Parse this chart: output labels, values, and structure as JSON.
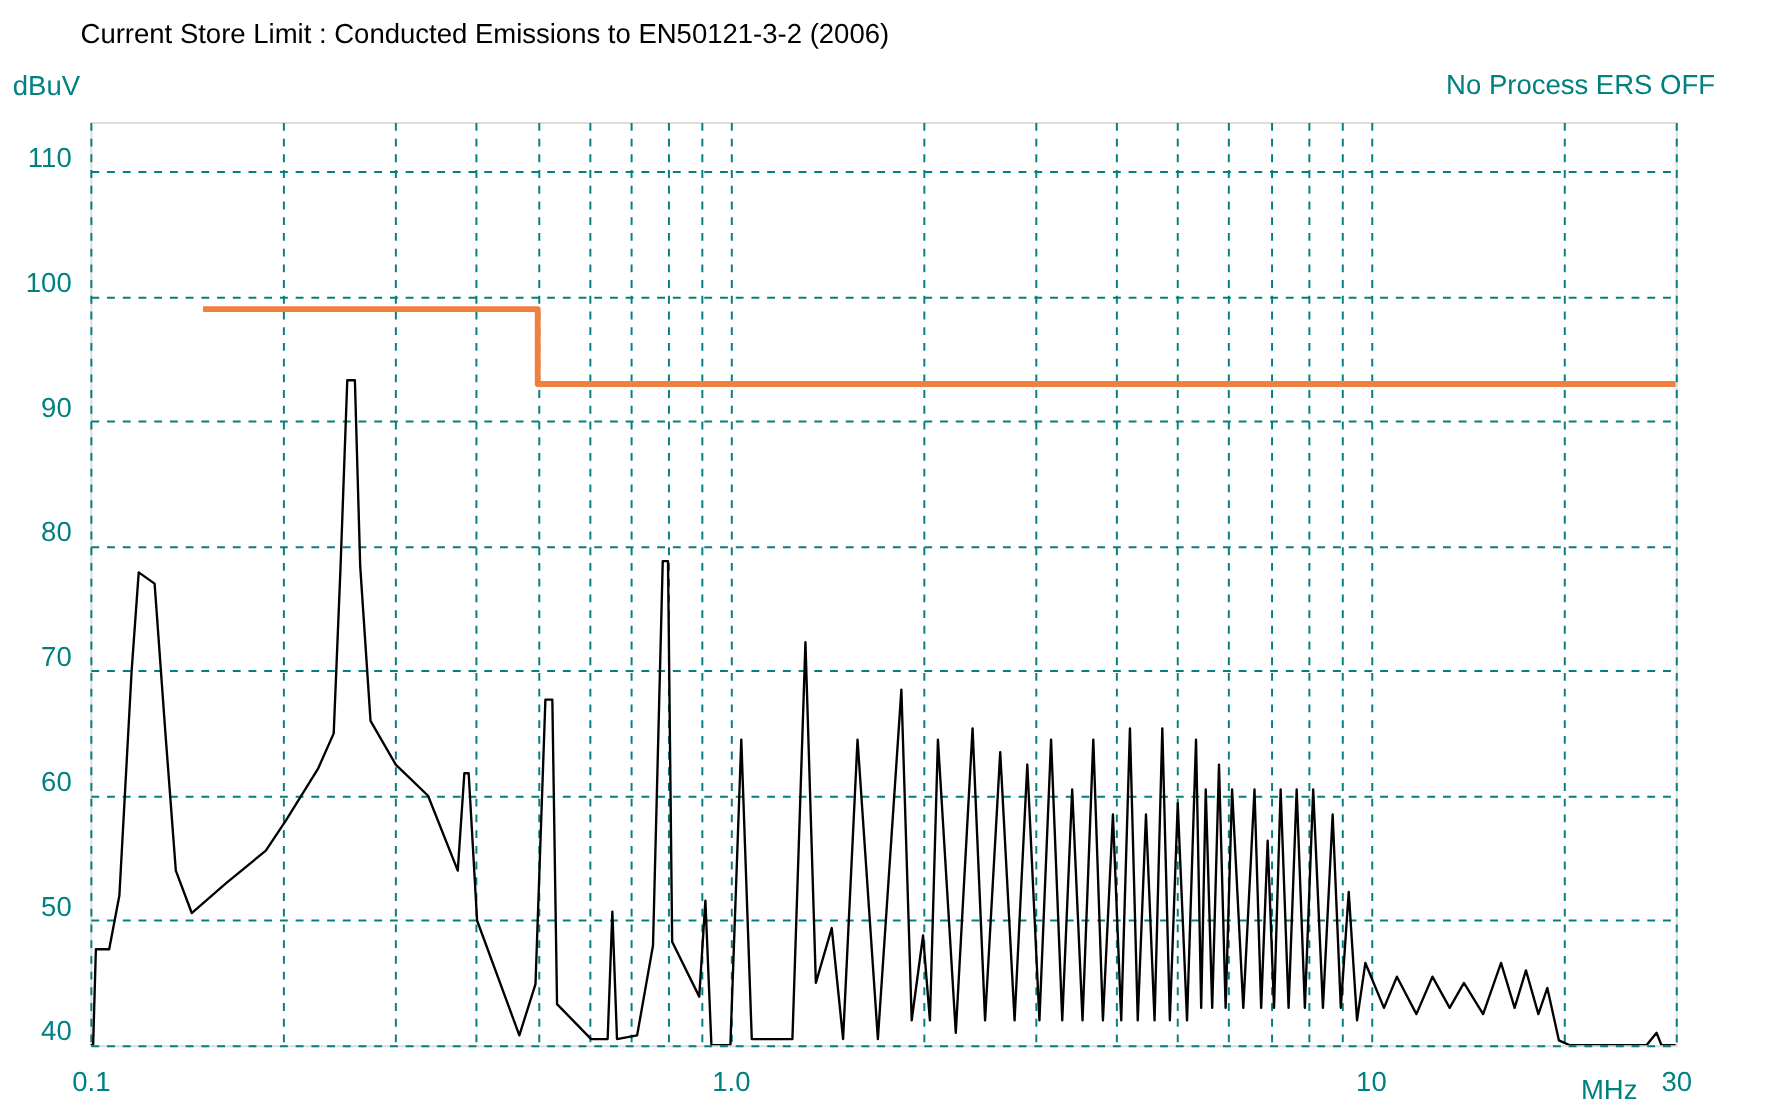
{
  "chart_data": {
    "type": "line",
    "title": "Current Store Limit : Conducted Emissions to EN50121-3-2 (2006)",
    "xlabel": "MHz",
    "ylabel": "dBuV",
    "annotations": [
      "No Process ERS OFF"
    ],
    "xlim": [
      0.1,
      30
    ],
    "ylim": [
      40,
      114
    ],
    "xticks": [
      {
        "value": 0.1,
        "label": "0.1"
      },
      {
        "value": 0.2,
        "label": null
      },
      {
        "value": 0.3,
        "label": null
      },
      {
        "value": 0.4,
        "label": null
      },
      {
        "value": 0.5,
        "label": null
      },
      {
        "value": 0.6,
        "label": null
      },
      {
        "value": 0.7,
        "label": null
      },
      {
        "value": 0.8,
        "label": null
      },
      {
        "value": 0.9,
        "label": null
      },
      {
        "value": 1,
        "label": "1.0"
      },
      {
        "value": 2,
        "label": null
      },
      {
        "value": 3,
        "label": null
      },
      {
        "value": 4,
        "label": null
      },
      {
        "value": 5,
        "label": null
      },
      {
        "value": 6,
        "label": null
      },
      {
        "value": 7,
        "label": null
      },
      {
        "value": 8,
        "label": null
      },
      {
        "value": 9,
        "label": null
      },
      {
        "value": 10,
        "label": "10"
      },
      {
        "value": 20,
        "label": null
      },
      {
        "value": 30,
        "label": "30"
      }
    ],
    "yticks": [
      40,
      50,
      60,
      70,
      80,
      90,
      100,
      110
    ],
    "log": "x",
    "grid": true,
    "line_style": "solid",
    "series": [
      {
        "type": "line",
        "color": "#f08040",
        "x": [
          0.15,
          0.5,
          0.5,
          30
        ],
        "values": [
          99,
          99,
          93,
          93
        ]
      },
      {
        "type": "line",
        "color": "#000000",
        "x": [
          0.1,
          0.101,
          0.102,
          0.107,
          0.111,
          0.116,
          0.119,
          0.126,
          0.131,
          0.136,
          0.144,
          0.163,
          0.188,
          0.202,
          0.227,
          0.24,
          0.246,
          0.252,
          0.259,
          0.264,
          0.274,
          0.3,
          0.337,
          0.375,
          0.384,
          0.39,
          0.402,
          0.468,
          0.496,
          0.514,
          0.527,
          0.536,
          0.606,
          0.643,
          0.654,
          0.665,
          0.715,
          0.757,
          0.784,
          0.799,
          0.811,
          0.894,
          0.914,
          0.934,
          1.0,
          1.04,
          1.08,
          1.25,
          1.31,
          1.36,
          1.44,
          1.5,
          1.58,
          1.7,
          1.85,
          1.92,
          2.0,
          2.05,
          2.11,
          2.25,
          2.39,
          2.5,
          2.64,
          2.78,
          2.91,
          3.04,
          3.17,
          3.3,
          3.42,
          3.55,
          3.69,
          3.82,
          3.96,
          4.08,
          4.21,
          4.33,
          4.46,
          4.6,
          4.73,
          4.86,
          5.0,
          5.17,
          5.34,
          5.44,
          5.53,
          5.66,
          5.8,
          5.94,
          6.08,
          6.33,
          6.59,
          6.75,
          6.91,
          7.07,
          7.24,
          7.45,
          7.67,
          7.9,
          8.14,
          8.43,
          8.73,
          8.99,
          9.25,
          9.53,
          9.82,
          10.5,
          11,
          11.8,
          12.5,
          13.3,
          14,
          15,
          16,
          16.8,
          17.5,
          18.3,
          18.9,
          19.7,
          20.5,
          27,
          28,
          28.5,
          30
        ],
        "values": [
          40,
          40,
          47.7,
          47.7,
          52,
          70,
          77.9,
          77,
          65,
          54,
          50.6,
          53,
          55.6,
          58,
          62.2,
          65,
          78.4,
          93.3,
          93.3,
          78.4,
          66,
          62.5,
          60,
          54,
          61.8,
          61.8,
          50,
          40.8,
          44.9,
          67.7,
          67.7,
          43.3,
          40.5,
          40.5,
          50.7,
          40.5,
          40.8,
          48,
          78.8,
          78.8,
          48.3,
          43.9,
          51.6,
          40,
          40,
          64.5,
          40.5,
          40.5,
          72.3,
          45,
          49.4,
          40.5,
          64.5,
          40.5,
          68.5,
          42,
          48.8,
          42,
          64.5,
          41,
          65.4,
          42,
          63.5,
          42,
          62.5,
          42,
          64.5,
          42,
          60.5,
          42,
          64.5,
          42,
          58.5,
          42,
          65.4,
          42,
          58.5,
          42,
          65.4,
          42,
          59.4,
          42,
          64.5,
          43,
          60.5,
          43,
          62.5,
          43,
          60.5,
          43,
          60.5,
          43,
          56.4,
          43,
          60.5,
          43,
          60.5,
          43,
          60.5,
          43,
          58.5,
          43,
          52.3,
          42,
          46.6,
          43,
          45.5,
          42.5,
          45.5,
          43,
          45,
          42.5,
          46.6,
          43,
          46,
          42.5,
          44.6,
          40.4,
          40,
          40,
          41,
          40,
          40
        ]
      }
    ]
  }
}
